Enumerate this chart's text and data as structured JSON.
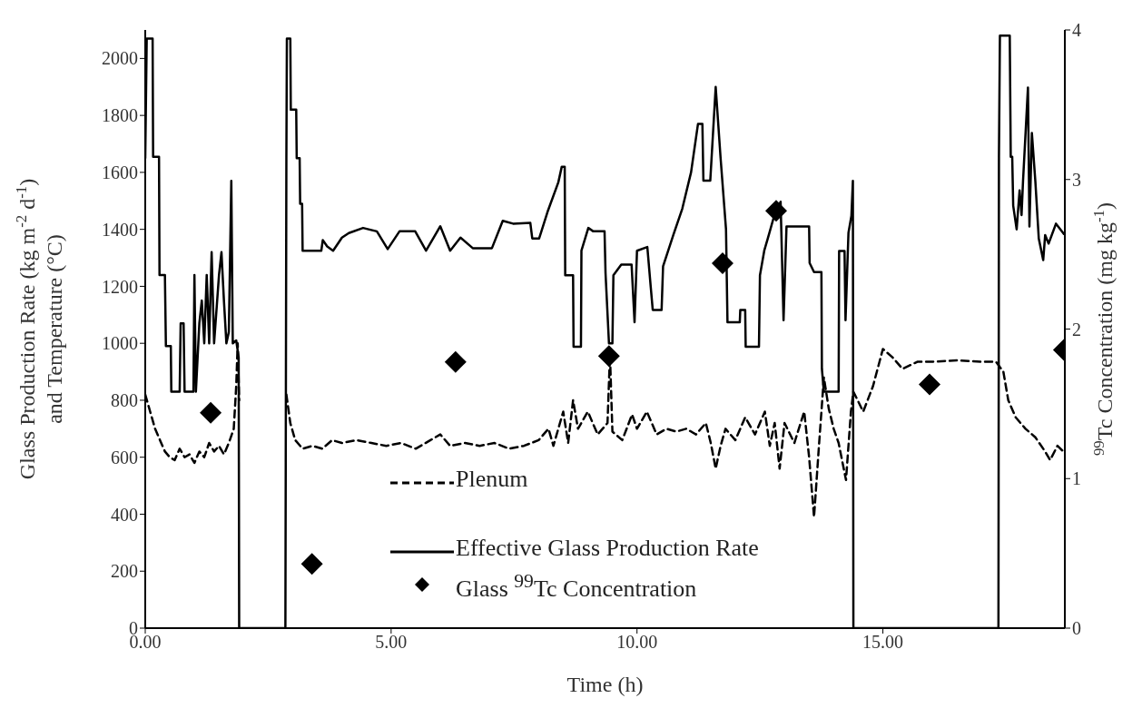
{
  "chart_data": {
    "type": "line",
    "xlabel": "Time (h)",
    "ylabel": "Glass Production Rate (kg m$^{-2}$ d$^{-1}$)\nand Temperature (°C)",
    "y2label": "$^{99}$Tc Concentration (mg kg$^{-1}$)",
    "xlim": [
      0,
      18.7
    ],
    "xticks": [
      {
        "value": 0,
        "label": "0.00"
      },
      {
        "value": 5,
        "label": "5.00"
      },
      {
        "value": 10,
        "label": "10.00"
      },
      {
        "value": 15,
        "label": "15.00"
      }
    ],
    "ylim": [
      0,
      2100
    ],
    "yticks": [
      0,
      200,
      400,
      600,
      800,
      1000,
      1200,
      1400,
      1600,
      1800,
      2000
    ],
    "y2lim": [
      0,
      4
    ],
    "y2ticks": [
      0,
      1,
      2,
      3,
      4
    ],
    "grid": false,
    "legend": "bottom",
    "series": [
      {
        "name": "Plenum",
        "color": "#000000",
        "line_style": "dashed",
        "x": [
          0,
          0.1,
          0.2,
          0.3,
          0.4,
          0.5,
          0.6,
          0.7,
          0.8,
          0.9,
          1.0,
          1.1,
          1.2,
          1.3,
          1.4,
          1.5,
          1.6,
          1.7,
          1.8,
          1.85,
          1.88,
          1.91,
          1.95,
          2.87,
          2.95,
          3.05,
          3.2,
          3.4,
          3.6,
          3.8,
          4.0,
          4.3,
          4.6,
          4.9,
          5.2,
          5.5,
          5.8,
          6.0,
          6.2,
          6.5,
          6.8,
          7.1,
          7.4,
          7.7,
          8.0,
          8.2,
          8.3,
          8.5,
          8.6,
          8.7,
          8.8,
          9.0,
          9.2,
          9.4,
          9.45,
          9.5,
          9.7,
          9.9,
          10.0,
          10.2,
          10.4,
          10.6,
          10.8,
          11.0,
          11.2,
          11.4,
          11.5,
          11.6,
          11.7,
          11.8,
          12.0,
          12.2,
          12.4,
          12.6,
          12.7,
          12.8,
          12.9,
          13.0,
          13.2,
          13.4,
          13.5,
          13.6,
          13.7,
          13.8,
          13.9,
          14.0,
          14.1,
          14.25,
          14.35,
          14.4,
          14.6,
          14.8,
          15.0,
          15.2,
          15.4,
          15.7,
          16.0,
          16.5,
          17.0,
          17.3,
          17.45,
          17.55,
          17.7,
          17.9,
          18.1,
          18.3,
          18.4,
          18.55,
          18.7
        ],
        "values": [
          820,
          760,
          700,
          660,
          620,
          600,
          590,
          630,
          600,
          610,
          580,
          620,
          600,
          650,
          620,
          640,
          610,
          650,
          700,
          850,
          1000,
          800,
          null,
          820,
          720,
          660,
          630,
          640,
          630,
          660,
          650,
          660,
          650,
          640,
          650,
          630,
          660,
          680,
          640,
          650,
          640,
          650,
          630,
          640,
          660,
          700,
          640,
          760,
          650,
          800,
          700,
          760,
          680,
          720,
          960,
          690,
          660,
          750,
          700,
          760,
          680,
          700,
          690,
          700,
          680,
          720,
          650,
          560,
          640,
          700,
          660,
          740,
          680,
          760,
          640,
          720,
          560,
          720,
          650,
          760,
          600,
          390,
          640,
          880,
          770,
          700,
          650,
          520,
          760,
          830,
          760,
          850,
          980,
          950,
          910,
          935,
          935,
          940,
          935,
          935,
          900,
          800,
          740,
          700,
          670,
          620,
          590,
          640,
          615
        ]
      },
      {
        "name": "Effective Glass Production Rate",
        "color": "#000000",
        "line_style": "solid",
        "x": [
          0,
          0.03,
          0.15,
          0.16,
          0.28,
          0.29,
          0.4,
          0.42,
          0.52,
          0.53,
          0.7,
          0.72,
          0.78,
          0.8,
          0.98,
          1.0,
          1.03,
          1.1,
          1.15,
          1.2,
          1.25,
          1.3,
          1.35,
          1.4,
          1.5,
          1.55,
          1.6,
          1.65,
          1.7,
          1.75,
          1.78,
          1.85,
          1.9,
          1.91,
          2.85,
          2.87,
          2.88,
          2.95,
          2.96,
          3.07,
          3.08,
          3.14,
          3.15,
          3.19,
          3.2,
          3.58,
          3.61,
          3.7,
          3.82,
          4.0,
          4.14,
          4.43,
          4.71,
          4.93,
          5.17,
          5.49,
          5.71,
          6.0,
          6.2,
          6.41,
          6.66,
          7.05,
          7.27,
          7.48,
          7.83,
          7.87,
          8.01,
          8.19,
          8.4,
          8.47,
          8.53,
          8.54,
          8.7,
          8.71,
          8.86,
          8.87,
          9.01,
          9.11,
          9.34,
          9.36,
          9.43,
          9.5,
          9.52,
          9.68,
          9.89,
          9.95,
          10.0,
          10.21,
          10.28,
          10.32,
          10.5,
          10.53,
          10.74,
          10.92,
          11.1,
          11.24,
          11.33,
          11.35,
          11.49,
          11.6,
          11.7,
          11.81,
          11.84,
          12.09,
          12.1,
          12.2,
          12.21,
          12.48,
          12.5,
          12.59,
          12.66,
          12.8,
          12.92,
          12.98,
          13.04,
          13.5,
          13.51,
          13.6,
          13.75,
          13.76,
          13.8,
          14.1,
          14.11,
          14.22,
          14.24,
          14.3,
          14.36,
          14.39,
          14.4,
          17.35,
          17.36,
          17.38,
          17.58,
          17.6,
          17.63,
          17.65,
          17.72,
          17.78,
          17.82,
          17.85,
          17.95,
          17.98,
          18.03,
          18.1,
          18.17,
          18.26,
          18.3,
          18.37,
          18.52,
          18.68
        ],
        "values": [
          1650,
          2070,
          2070,
          1655,
          1655,
          1240,
          1240,
          990,
          990,
          830,
          830,
          1070,
          1070,
          830,
          830,
          1240,
          830,
          1070,
          1150,
          1000,
          1240,
          1000,
          1320,
          1000,
          1240,
          1320,
          1150,
          1000,
          1040,
          1570,
          1000,
          1010,
          950,
          0,
          0,
          1650,
          2070,
          2070,
          1820,
          1820,
          1650,
          1650,
          1490,
          1490,
          1325,
          1325,
          1362,
          1340,
          1325,
          1371,
          1387,
          1405,
          1393,
          1331,
          1393,
          1393,
          1325,
          1411,
          1325,
          1371,
          1334,
          1334,
          1430,
          1420,
          1423,
          1368,
          1368,
          1466,
          1565,
          1620,
          1620,
          1239,
          1239,
          988,
          988,
          1325,
          1405,
          1393,
          1393,
          1246,
          1000,
          1000,
          1239,
          1276,
          1276,
          1074,
          1325,
          1338,
          1196,
          1117,
          1117,
          1270,
          1381,
          1472,
          1601,
          1770,
          1770,
          1571,
          1571,
          1900,
          1650,
          1400,
          1074,
          1074,
          1117,
          1117,
          988,
          988,
          1239,
          1327,
          1368,
          1454,
          1497,
          1081,
          1410,
          1410,
          1282,
          1250,
          1250,
          910,
          830,
          830,
          1324,
          1324,
          1081,
          1388,
          1448,
          1570,
          0,
          0,
          1655,
          2080,
          2080,
          1655,
          1655,
          1483,
          1400,
          1537,
          1450,
          1570,
          1898,
          1410,
          1738,
          1570,
          1368,
          1292,
          1380,
          1350,
          1420,
          1384
        ]
      },
      {
        "name": "Glass $^{99}$Tc   Concentration",
        "type": "scatter",
        "axis": "y2",
        "color": "#000000",
        "marker": "diamond",
        "x": [
          1.33,
          3.39,
          6.31,
          9.43,
          11.74,
          12.83,
          15.95,
          18.68
        ],
        "values": [
          1.44,
          0.43,
          1.78,
          1.82,
          2.44,
          2.79,
          1.63,
          1.86
        ]
      }
    ]
  }
}
